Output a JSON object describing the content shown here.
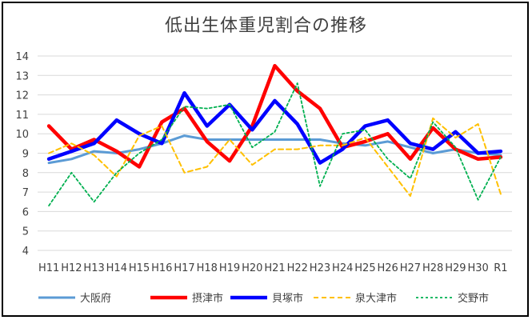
{
  "chart_data": {
    "type": "line",
    "title": "低出生体重児割合の推移",
    "xlabel": "",
    "ylabel": "",
    "ylim": [
      4,
      14
    ],
    "yticks": [
      "4",
      "5",
      "6",
      "7",
      "8",
      "9",
      "10",
      "11",
      "12",
      "13",
      "14"
    ],
    "grid": "horizontal",
    "legend_position": "bottom",
    "categories": [
      "H11",
      "H12",
      "H13",
      "H14",
      "H15",
      "H16",
      "H17",
      "H18",
      "H19",
      "H20",
      "H21",
      "H22",
      "H23",
      "H24",
      "H25",
      "H26",
      "H27",
      "H28",
      "H29",
      "H30",
      "R1"
    ],
    "series": [
      {
        "name": "大阪府",
        "color": "#5b9bd5",
        "style": "solid-medium",
        "values": [
          8.5,
          8.7,
          9.1,
          9.0,
          9.2,
          9.5,
          9.9,
          9.7,
          9.7,
          9.7,
          9.7,
          9.7,
          9.7,
          9.5,
          9.4,
          9.6,
          9.3,
          9.0,
          9.2,
          9.0,
          8.9
        ]
      },
      {
        "name": "摂津市",
        "color": "#ff0000",
        "style": "solid-thick",
        "values": [
          10.4,
          9.2,
          9.7,
          9.1,
          8.3,
          10.6,
          11.3,
          9.6,
          8.6,
          10.4,
          13.5,
          12.2,
          11.3,
          9.3,
          9.6,
          10.0,
          8.7,
          10.3,
          9.2,
          8.7,
          8.8
        ]
      },
      {
        "name": "貝塚市",
        "color": "#0000ff",
        "style": "solid-thick",
        "values": [
          8.7,
          9.1,
          9.5,
          10.7,
          10.0,
          9.5,
          12.1,
          10.4,
          11.5,
          10.2,
          11.7,
          10.5,
          8.5,
          9.2,
          10.4,
          10.7,
          9.5,
          9.2,
          10.1,
          9.0,
          9.1
        ]
      },
      {
        "name": "泉大津市",
        "color": "#ffc000",
        "style": "dashed",
        "values": [
          9.0,
          9.5,
          8.9,
          7.8,
          9.9,
          10.4,
          8.0,
          8.3,
          9.7,
          8.4,
          9.2,
          9.2,
          9.4,
          9.4,
          9.8,
          8.3,
          6.8,
          10.8,
          9.8,
          10.5,
          6.9
        ]
      },
      {
        "name": "交野市",
        "color": "#00b050",
        "style": "dotted",
        "values": [
          6.3,
          8.0,
          6.5,
          8.0,
          9.0,
          9.7,
          11.4,
          11.3,
          11.5,
          9.3,
          10.1,
          12.6,
          7.3,
          10.0,
          10.2,
          8.7,
          7.7,
          10.6,
          9.3,
          6.6,
          8.8
        ]
      }
    ]
  }
}
